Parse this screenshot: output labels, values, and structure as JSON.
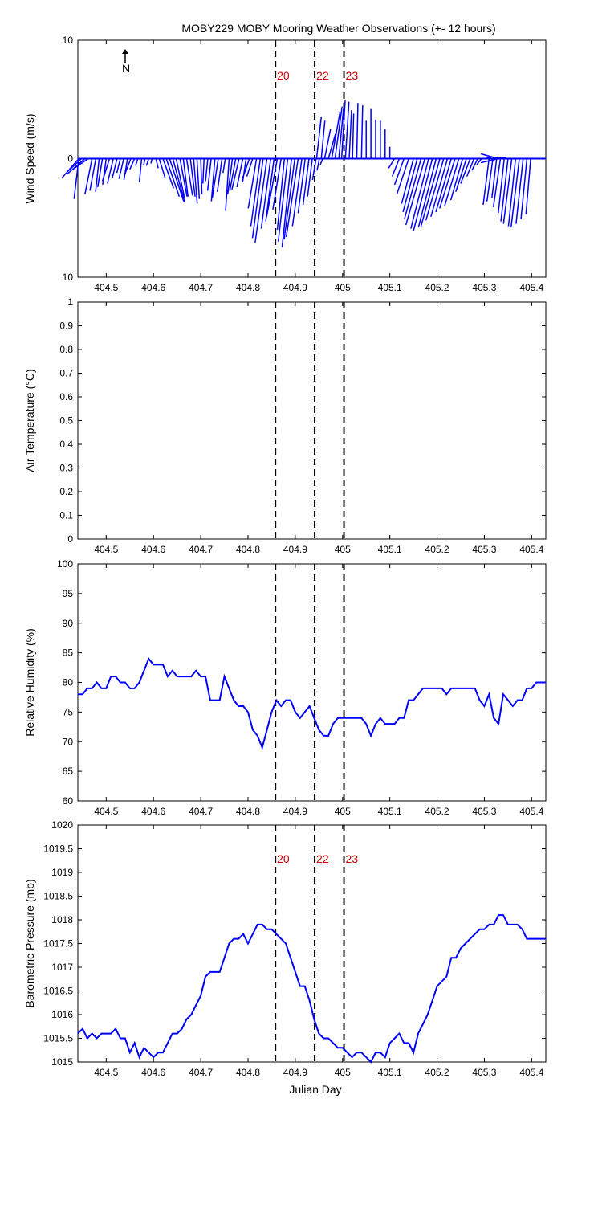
{
  "title": "MOBY229 MOBY Mooring Weather Observations (+- 12 hours)",
  "colors": {
    "series": "#0000ff",
    "marker_label": "#cc0000",
    "axis": "#000000",
    "background": "#ffffff"
  },
  "x_ticks": [
    "404.5",
    "404.6",
    "404.7",
    "404.8",
    "404.9",
    "405",
    "405.1",
    "405.2",
    "405.3",
    "405.4"
  ],
  "xlabel": "Julian Day",
  "markers": [
    {
      "x": 404.858,
      "label": "20"
    },
    {
      "x": 404.941,
      "label": "22"
    },
    {
      "x": 405.003,
      "label": "23"
    }
  ],
  "chart_data": [
    {
      "type": "line",
      "name": "wind",
      "ylabel": "Wind Speed (m/s)",
      "ylim": [
        -10,
        10
      ],
      "y_ticks": [
        "10",
        "0",
        "10"
      ],
      "north_label": "N",
      "xlim": [
        404.44,
        405.43
      ],
      "grid": false,
      "sticks": [
        [
          404.442,
          -1.4,
          -1.6
        ],
        [
          404.448,
          -1.2,
          -1.1
        ],
        [
          404.455,
          -1.5,
          -1.3
        ],
        [
          404.462,
          -1.3,
          -0.9
        ],
        [
          404.442,
          -0.4,
          -3.4
        ],
        [
          404.47,
          -0.6,
          -3.0
        ],
        [
          404.478,
          -0.5,
          -2.7
        ],
        [
          404.485,
          -0.3,
          -2.8
        ],
        [
          404.492,
          -0.4,
          -2.4
        ],
        [
          404.5,
          -0.3,
          -2.2
        ],
        [
          404.507,
          -0.6,
          -1.9
        ],
        [
          404.515,
          -0.5,
          -2.1
        ],
        [
          404.523,
          -0.4,
          -1.6
        ],
        [
          404.53,
          -0.3,
          -1.2
        ],
        [
          404.537,
          -0.4,
          -1.7
        ],
        [
          404.545,
          -0.3,
          -1.8
        ],
        [
          404.552,
          -0.5,
          -1.3
        ],
        [
          404.56,
          -0.4,
          -0.9
        ],
        [
          404.567,
          -0.2,
          -0.6
        ],
        [
          404.575,
          -0.2,
          -2.0
        ],
        [
          404.582,
          -0.1,
          -0.5
        ],
        [
          404.59,
          -0.2,
          -0.6
        ],
        [
          404.597,
          -0.1,
          -0.4
        ],
        [
          404.605,
          0.2,
          -0.8
        ],
        [
          404.612,
          0.5,
          -1.6
        ],
        [
          404.62,
          0.9,
          -2.5
        ],
        [
          404.627,
          1.1,
          -3.2
        ],
        [
          404.634,
          1.2,
          -3.6
        ],
        [
          404.641,
          1.0,
          -3.7
        ],
        [
          404.648,
          0.7,
          -3.3
        ],
        [
          404.656,
          0.6,
          -3.2
        ],
        [
          404.663,
          0.4,
          -3.2
        ],
        [
          404.67,
          0.5,
          -3.1
        ],
        [
          404.678,
          0.4,
          -3.2
        ],
        [
          404.685,
          0.3,
          -3.8
        ],
        [
          404.692,
          0.2,
          -3.4
        ],
        [
          404.7,
          0.1,
          -3.0
        ],
        [
          404.707,
          -0.1,
          -2.1
        ],
        [
          404.715,
          -0.2,
          -1.9
        ],
        [
          404.722,
          -0.3,
          -2.7
        ],
        [
          404.73,
          -0.3,
          -3.6
        ],
        [
          404.737,
          -0.5,
          -3.3
        ],
        [
          404.745,
          -0.4,
          -2.8
        ],
        [
          404.752,
          -0.2,
          -1.2
        ],
        [
          404.76,
          -0.3,
          -4.4
        ],
        [
          404.767,
          -0.4,
          -3.0
        ],
        [
          404.774,
          -0.5,
          -2.7
        ],
        [
          404.781,
          -0.6,
          -2.6
        ],
        [
          404.789,
          -0.5,
          -2.4
        ],
        [
          404.796,
          -0.3,
          -2.0
        ],
        [
          404.803,
          -0.6,
          -1.7
        ],
        [
          404.81,
          -0.5,
          -1.5
        ],
        [
          404.818,
          -0.7,
          -4.2
        ],
        [
          404.826,
          -0.8,
          -5.7
        ],
        [
          404.832,
          -0.9,
          -6.7
        ],
        [
          404.84,
          -1.0,
          -7.1
        ],
        [
          404.848,
          -0.8,
          -5.9
        ],
        [
          404.855,
          -0.7,
          -5.3
        ],
        [
          404.862,
          -0.9,
          -4.9
        ],
        [
          404.87,
          -0.7,
          -4.3
        ],
        [
          404.877,
          -0.6,
          -6.0
        ],
        [
          404.884,
          -0.8,
          -7.0
        ],
        [
          404.892,
          -0.8,
          -7.5
        ],
        [
          404.899,
          -0.9,
          -6.8
        ],
        [
          404.906,
          -1.0,
          -6.6
        ],
        [
          404.914,
          -0.8,
          -5.7
        ],
        [
          404.921,
          -0.6,
          -4.6
        ],
        [
          404.929,
          -0.5,
          -3.9
        ],
        [
          404.936,
          -0.4,
          -3.2
        ],
        [
          404.944,
          -0.3,
          -1.8
        ],
        [
          404.951,
          -0.2,
          -1.0
        ],
        [
          404.958,
          -0.2,
          -0.5
        ],
        [
          404.945,
          0.4,
          3.5
        ],
        [
          404.955,
          0.3,
          3.2
        ],
        [
          404.962,
          0.5,
          2.5
        ],
        [
          404.97,
          0.6,
          2.1
        ],
        [
          404.977,
          0.7,
          3.9
        ],
        [
          404.984,
          0.6,
          4.4
        ],
        [
          404.992,
          0.4,
          4.2
        ],
        [
          404.998,
          0.3,
          4.9
        ],
        [
          405.006,
          0.3,
          4.8
        ],
        [
          405.014,
          0.2,
          4.1
        ],
        [
          405.021,
          0.1,
          3.8
        ],
        [
          405.03,
          0.1,
          4.7
        ],
        [
          405.04,
          0.1,
          4.5
        ],
        [
          405.05,
          0.0,
          3.2
        ],
        [
          405.06,
          0.0,
          4.2
        ],
        [
          405.07,
          0.0,
          3.3
        ],
        [
          405.08,
          0.0,
          3.2
        ],
        [
          405.09,
          0.0,
          2.5
        ],
        [
          405.1,
          0.0,
          1.0
        ],
        [
          405.11,
          -0.5,
          -0.8
        ],
        [
          405.12,
          -0.6,
          -1.5
        ],
        [
          405.13,
          -0.8,
          -2.2
        ],
        [
          405.14,
          -1.0,
          -3.0
        ],
        [
          405.15,
          -1.0,
          -3.8
        ],
        [
          405.158,
          -1.2,
          -4.5
        ],
        [
          405.166,
          -1.4,
          -5.1
        ],
        [
          405.174,
          -1.6,
          -5.6
        ],
        [
          405.182,
          -1.5,
          -5.9
        ],
        [
          405.19,
          -1.6,
          -6.1
        ],
        [
          405.198,
          -1.5,
          -5.8
        ],
        [
          405.206,
          -1.6,
          -5.7
        ],
        [
          405.214,
          -1.5,
          -5.2
        ],
        [
          405.222,
          -1.4,
          -4.9
        ],
        [
          405.23,
          -1.3,
          -4.5
        ],
        [
          405.238,
          -1.3,
          -4.2
        ],
        [
          405.246,
          -1.2,
          -4.0
        ],
        [
          405.254,
          -1.0,
          -3.5
        ],
        [
          405.262,
          -0.9,
          -2.8
        ],
        [
          405.27,
          -0.8,
          -2.1
        ],
        [
          405.278,
          -0.6,
          -1.5
        ],
        [
          405.286,
          -0.5,
          -1.0
        ],
        [
          405.294,
          -0.4,
          -0.5
        ],
        [
          405.3,
          0.6,
          0.1
        ],
        [
          405.31,
          1.3,
          0.1
        ],
        [
          405.322,
          1.0,
          0.1
        ],
        [
          405.31,
          -0.5,
          -3.9
        ],
        [
          405.318,
          -0.5,
          -3.6
        ],
        [
          405.326,
          -0.4,
          -3.3
        ],
        [
          405.334,
          -0.6,
          -4.1
        ],
        [
          405.342,
          -0.5,
          -4.6
        ],
        [
          405.35,
          -0.6,
          -5.3
        ],
        [
          405.358,
          -0.7,
          -5.5
        ],
        [
          405.366,
          -0.6,
          -5.7
        ],
        [
          405.374,
          -0.7,
          -5.8
        ],
        [
          405.382,
          -0.6,
          -5.5
        ],
        [
          405.39,
          -0.5,
          -5.1
        ],
        [
          405.398,
          -0.4,
          -4.7
        ]
      ]
    },
    {
      "type": "line",
      "name": "air_temperature",
      "ylabel": "Air Temperature (°C)",
      "ylim": [
        0,
        1
      ],
      "y_ticks": [
        "1",
        "0.9",
        "0.8",
        "0.7",
        "0.6",
        "0.5",
        "0.4",
        "0.3",
        "0.2",
        "0.1",
        "0"
      ],
      "xlim": [
        404.44,
        405.43
      ],
      "grid": false,
      "x": [],
      "y": []
    },
    {
      "type": "line",
      "name": "relative_humidity",
      "ylabel": "Relative Humidity (%)",
      "ylim": [
        60,
        100
      ],
      "y_ticks": [
        "100",
        "95",
        "90",
        "85",
        "80",
        "75",
        "70",
        "65",
        "60"
      ],
      "xlim": [
        404.44,
        405.43
      ],
      "grid": false,
      "x": [
        404.44,
        404.45,
        404.46,
        404.47,
        404.48,
        404.49,
        404.5,
        404.51,
        404.52,
        404.53,
        404.54,
        404.55,
        404.56,
        404.57,
        404.58,
        404.59,
        404.6,
        404.61,
        404.62,
        404.63,
        404.64,
        404.65,
        404.66,
        404.67,
        404.68,
        404.69,
        404.7,
        404.71,
        404.72,
        404.73,
        404.74,
        404.75,
        404.76,
        404.77,
        404.78,
        404.79,
        404.8,
        404.81,
        404.82,
        404.83,
        404.84,
        404.85,
        404.86,
        404.87,
        404.88,
        404.89,
        404.9,
        404.91,
        404.92,
        404.93,
        404.94,
        404.95,
        404.96,
        404.97,
        404.98,
        404.99,
        405.0,
        405.01,
        405.02,
        405.03,
        405.04,
        405.05,
        405.06,
        405.07,
        405.08,
        405.09,
        405.1,
        405.11,
        405.12,
        405.13,
        405.14,
        405.15,
        405.16,
        405.17,
        405.18,
        405.19,
        405.2,
        405.21,
        405.22,
        405.23,
        405.24,
        405.25,
        405.26,
        405.27,
        405.28,
        405.29,
        405.3,
        405.31,
        405.32,
        405.33,
        405.34,
        405.35,
        405.36,
        405.37,
        405.38,
        405.39,
        405.4,
        405.41,
        405.42,
        405.43
      ],
      "y": [
        78,
        78,
        79,
        79,
        80,
        79,
        79,
        81,
        81,
        80,
        80,
        79,
        79,
        80,
        82,
        84,
        83,
        83,
        83,
        81,
        82,
        81,
        81,
        81,
        81,
        82,
        81,
        81,
        77,
        77,
        77,
        81,
        79,
        77,
        76,
        76,
        75,
        72,
        71,
        69,
        72,
        75,
        77,
        76,
        77,
        77,
        75,
        74,
        75,
        76,
        74,
        72,
        71,
        71,
        73,
        74,
        74,
        74,
        74,
        74,
        74,
        73,
        71,
        73,
        74,
        73,
        73,
        73,
        74,
        74,
        77,
        77,
        78,
        79,
        79,
        79,
        79,
        79,
        78,
        79,
        79,
        79,
        79,
        79,
        79,
        77,
        76,
        78,
        74,
        73,
        78,
        77,
        76,
        77,
        77,
        79,
        79,
        80,
        80,
        80
      ]
    },
    {
      "type": "line",
      "name": "barometric_pressure",
      "ylabel": "Barometric Pressure (mb)",
      "ylim": [
        1015,
        1020
      ],
      "y_ticks": [
        "1020",
        "1019.5",
        "1019",
        "1018.5",
        "1018",
        "1017.5",
        "1017",
        "1016.5",
        "1016",
        "1015.5",
        "1015"
      ],
      "xlim": [
        404.44,
        405.43
      ],
      "grid": false,
      "x": [
        404.44,
        404.45,
        404.46,
        404.47,
        404.48,
        404.49,
        404.5,
        404.51,
        404.52,
        404.53,
        404.54,
        404.55,
        404.56,
        404.57,
        404.58,
        404.59,
        404.6,
        404.61,
        404.62,
        404.63,
        404.64,
        404.65,
        404.66,
        404.67,
        404.68,
        404.69,
        404.7,
        404.71,
        404.72,
        404.73,
        404.74,
        404.75,
        404.76,
        404.77,
        404.78,
        404.79,
        404.8,
        404.81,
        404.82,
        404.83,
        404.84,
        404.85,
        404.86,
        404.87,
        404.88,
        404.89,
        404.9,
        404.91,
        404.92,
        404.93,
        404.94,
        404.95,
        404.96,
        404.97,
        404.98,
        404.99,
        405.0,
        405.01,
        405.02,
        405.03,
        405.04,
        405.05,
        405.06,
        405.07,
        405.08,
        405.09,
        405.1,
        405.11,
        405.12,
        405.13,
        405.14,
        405.15,
        405.16,
        405.17,
        405.18,
        405.19,
        405.2,
        405.21,
        405.22,
        405.23,
        405.24,
        405.25,
        405.26,
        405.27,
        405.28,
        405.29,
        405.3,
        405.31,
        405.32,
        405.33,
        405.34,
        405.35,
        405.36,
        405.37,
        405.38,
        405.39,
        405.4,
        405.41,
        405.42,
        405.43
      ],
      "y": [
        1015.6,
        1015.7,
        1015.5,
        1015.6,
        1015.5,
        1015.6,
        1015.6,
        1015.6,
        1015.7,
        1015.5,
        1015.5,
        1015.2,
        1015.4,
        1015.1,
        1015.3,
        1015.2,
        1015.1,
        1015.2,
        1015.2,
        1015.4,
        1015.6,
        1015.6,
        1015.7,
        1015.9,
        1016.0,
        1016.2,
        1016.4,
        1016.8,
        1016.9,
        1016.9,
        1016.9,
        1017.2,
        1017.5,
        1017.6,
        1017.6,
        1017.7,
        1017.5,
        1017.7,
        1017.9,
        1017.9,
        1017.8,
        1017.8,
        1017.7,
        1017.6,
        1017.5,
        1017.2,
        1016.9,
        1016.6,
        1016.6,
        1016.3,
        1015.9,
        1015.6,
        1015.5,
        1015.5,
        1015.4,
        1015.3,
        1015.3,
        1015.2,
        1015.1,
        1015.2,
        1015.2,
        1015.1,
        1015.0,
        1015.2,
        1015.2,
        1015.1,
        1015.4,
        1015.5,
        1015.6,
        1015.4,
        1015.4,
        1015.2,
        1015.6,
        1015.8,
        1016.0,
        1016.3,
        1016.6,
        1016.7,
        1016.8,
        1017.2,
        1017.2,
        1017.4,
        1017.5,
        1017.6,
        1017.7,
        1017.8,
        1017.8,
        1017.9,
        1017.9,
        1018.1,
        1018.1,
        1017.9,
        1017.9,
        1017.9,
        1017.8,
        1017.6,
        1017.6,
        1017.6,
        1017.6,
        1017.6
      ]
    }
  ]
}
